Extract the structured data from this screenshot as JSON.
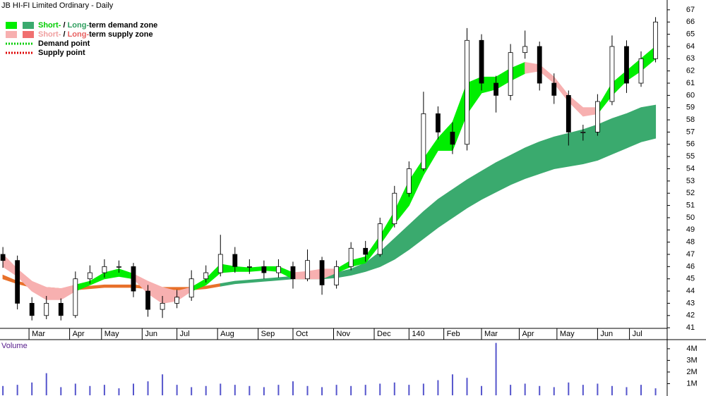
{
  "chart_data": [
    {
      "type": "candlestick",
      "title": "JB HI-FI Limited Ordinary - Daily",
      "legend": [
        {
          "swatches": [
            "#00ee00",
            "#3aaa6e"
          ],
          "style": "box",
          "parts": [
            {
              "text": "Short-",
              "color": "#00cc00"
            },
            {
              "text": " / ",
              "color": "#000000"
            },
            {
              "text": "Long-",
              "color": "#2e9e5e"
            },
            {
              "text": "term demand zone",
              "color": "#000000"
            }
          ]
        },
        {
          "swatches": [
            "#f7b0b0",
            "#f07070"
          ],
          "style": "box",
          "parts": [
            {
              "text": "Short-",
              "color": "#f0a0a0"
            },
            {
              "text": " / ",
              "color": "#000000"
            },
            {
              "text": "Long-",
              "color": "#e86060"
            },
            {
              "text": "term supply zone",
              "color": "#000000"
            }
          ]
        },
        {
          "swatches": [
            "#00cc00"
          ],
          "style": "dotted",
          "parts": [
            {
              "text": "Demand point",
              "color": "#000000"
            }
          ]
        },
        {
          "swatches": [
            "#dd0000"
          ],
          "style": "dotted",
          "parts": [
            {
              "text": "Supply point",
              "color": "#000000"
            }
          ]
        }
      ],
      "x": [
        0,
        5,
        10,
        15,
        20,
        25,
        30,
        35,
        40,
        45,
        50,
        55,
        60,
        65,
        70,
        75,
        80,
        85,
        90,
        95,
        100,
        105,
        110,
        115,
        120,
        125,
        130,
        135,
        140,
        145,
        150,
        155,
        160,
        165,
        170,
        175,
        180,
        185,
        190,
        195,
        200,
        205,
        210,
        215,
        220,
        225
      ],
      "open": [
        47,
        46.5,
        43,
        42,
        43,
        42,
        45,
        45.5,
        46,
        46,
        44,
        42.5,
        43,
        43.5,
        45,
        45.5,
        47,
        46,
        46,
        45.5,
        46,
        45,
        46.5,
        44.5,
        46,
        47.5,
        47,
        49.5,
        52,
        54,
        58.5,
        57,
        56,
        64.5,
        61,
        60,
        63.5,
        64,
        61,
        60,
        57,
        57,
        59.5,
        64,
        61,
        63
      ],
      "high": [
        47.6,
        46.9,
        43.5,
        43.6,
        43.4,
        45.6,
        46.1,
        46.6,
        46.5,
        46.3,
        44.5,
        43.6,
        44.1,
        45.7,
        46.1,
        48.6,
        47.6,
        46.6,
        46.5,
        46.6,
        46.4,
        47.4,
        46.8,
        46.5,
        48,
        48.1,
        50,
        52.6,
        54.6,
        60.3,
        59.1,
        57.8,
        65.5,
        65,
        61.6,
        64.2,
        65.3,
        64.4,
        61.8,
        60.4,
        57.6,
        60.1,
        64.9,
        64.5,
        63.6,
        66.4
      ],
      "low": [
        45.9,
        42.5,
        41.6,
        41.7,
        41.6,
        41.8,
        44.6,
        45.1,
        45.5,
        43.5,
        41.9,
        41.8,
        42.6,
        43.2,
        44.7,
        45.2,
        45.5,
        45.4,
        45,
        45.1,
        44.2,
        44.8,
        43.7,
        44.2,
        45.7,
        46.4,
        46.8,
        49.2,
        51.7,
        53.8,
        56.4,
        55.2,
        55.5,
        60.4,
        58.6,
        59.6,
        63,
        60.4,
        59.3,
        55.9,
        56.3,
        56.7,
        59.2,
        60.2,
        60.7,
        62.7
      ],
      "close": [
        46.5,
        43,
        42,
        43,
        42,
        45,
        45.5,
        46,
        46,
        44,
        42.5,
        43,
        43.5,
        45,
        45.5,
        47,
        46,
        46,
        45.5,
        46,
        45,
        46.5,
        44.5,
        46,
        47.5,
        47,
        49.5,
        52,
        54,
        58.5,
        57,
        56,
        64.5,
        61,
        60,
        63.5,
        64,
        61,
        60,
        57,
        57,
        59.5,
        64,
        61,
        63,
        66
      ],
      "up_color": "#ffffff",
      "down_color": "#000000",
      "edge_color": "#000000",
      "zones": [
        {
          "color": "#e8702a",
          "x": [
            0,
            5,
            10,
            15,
            20,
            25,
            30,
            35,
            40,
            45,
            50,
            55,
            60,
            65,
            70,
            75
          ],
          "upper": [
            45.3,
            44.8,
            44.5,
            44.3,
            44.2,
            44.3,
            44.4,
            44.5,
            44.5,
            44.5,
            44.4,
            44.3,
            44.3,
            44.3,
            44.4,
            44.6
          ],
          "lower": [
            45,
            44.6,
            44.3,
            44.1,
            44,
            44.1,
            44.2,
            44.3,
            44.3,
            44.3,
            44.2,
            44.2,
            44.1,
            44.1,
            44.2,
            44.4
          ]
        },
        {
          "color": "#3aaa6e",
          "x": [
            75,
            80,
            85,
            90,
            95,
            100,
            105,
            110,
            115,
            120,
            125,
            130,
            135,
            140,
            145,
            150,
            155,
            160,
            165,
            170,
            175,
            180,
            185,
            190,
            195,
            200,
            205,
            210,
            215,
            220,
            225
          ],
          "upper": [
            44.6,
            44.8,
            44.9,
            45,
            45.1,
            45.2,
            45.2,
            45.3,
            45.5,
            45.8,
            46.3,
            47.2,
            48.3,
            49.4,
            50.5,
            51.5,
            52.3,
            53.1,
            53.8,
            54.5,
            55.1,
            55.7,
            56.2,
            56.6,
            56.9,
            57.2,
            57.6,
            58.1,
            58.5,
            59,
            59.2
          ],
          "lower": [
            44.4,
            44.6,
            44.7,
            44.8,
            44.9,
            45,
            45,
            45,
            45.1,
            45.3,
            45.6,
            46,
            46.6,
            47.4,
            48.3,
            49.2,
            50,
            50.8,
            51.5,
            52.1,
            52.7,
            53.2,
            53.6,
            54,
            54.2,
            54.4,
            54.7,
            55.2,
            55.7,
            56.2,
            56.5
          ]
        },
        {
          "color": "#f7b0b0",
          "x": [
            0,
            5,
            10,
            15,
            20,
            25
          ],
          "upper": [
            47,
            45.8,
            44.8,
            44.3,
            44.2,
            44.5
          ],
          "lower": [
            46,
            45.2,
            44,
            43.3,
            43.3,
            44
          ]
        },
        {
          "color": "#00ee00",
          "x": [
            25,
            30,
            35,
            40,
            45
          ],
          "upper": [
            44.5,
            44.8,
            45.5,
            45.8,
            45.4
          ],
          "lower": [
            44,
            44.5,
            45,
            45.2,
            45
          ]
        },
        {
          "color": "#f7b0b0",
          "x": [
            45,
            50,
            55,
            60,
            65
          ],
          "upper": [
            45.4,
            44.8,
            44.3,
            44,
            44.3
          ],
          "lower": [
            45,
            43.8,
            43,
            43.2,
            44
          ]
        },
        {
          "color": "#00ee00",
          "x": [
            65,
            70,
            75,
            80,
            85,
            90,
            95,
            100
          ],
          "upper": [
            44.3,
            45,
            46.2,
            46,
            45.9,
            46,
            46,
            45.5
          ],
          "lower": [
            44,
            44.5,
            45.5,
            45.6,
            45.6,
            45.7,
            45.6,
            45
          ]
        },
        {
          "color": "#f7b0b0",
          "x": [
            100,
            105,
            110,
            115
          ],
          "upper": [
            45.5,
            45.6,
            45.8,
            45.8
          ],
          "lower": [
            45,
            45,
            45,
            45.5
          ]
        },
        {
          "color": "#00ee00",
          "x": [
            115,
            120,
            125,
            130,
            135,
            140,
            145,
            150,
            155,
            160,
            165,
            170,
            175,
            180
          ],
          "upper": [
            45.8,
            46.5,
            46.8,
            48.5,
            50.5,
            53,
            54.8,
            56.5,
            57.8,
            61,
            61.5,
            61.5,
            62.2,
            62.7
          ],
          "lower": [
            45.5,
            46,
            46.3,
            47.8,
            49.5,
            51,
            53.5,
            55.5,
            55.5,
            58.5,
            60.2,
            60.5,
            61.2,
            61.8
          ]
        },
        {
          "color": "#f7b0b0",
          "x": [
            180,
            185,
            190,
            195,
            200,
            205
          ],
          "upper": [
            62.7,
            62.5,
            61.5,
            60,
            59,
            59
          ],
          "lower": [
            61.8,
            62,
            61,
            59.5,
            58.3,
            58.5
          ]
        },
        {
          "color": "#00ee00",
          "x": [
            205,
            210,
            215,
            220,
            225
          ],
          "upper": [
            59,
            61,
            62,
            63,
            64
          ],
          "lower": [
            58.5,
            60,
            61.2,
            62,
            63
          ]
        }
      ],
      "xlim": [
        -1,
        229
      ],
      "xticks": [
        {
          "value": 9,
          "label": "Mar"
        },
        {
          "value": 23,
          "label": "Apr"
        },
        {
          "value": 34,
          "label": "May"
        },
        {
          "value": 48,
          "label": "Jun"
        },
        {
          "value": 60,
          "label": "Jul"
        },
        {
          "value": 74,
          "label": "Aug"
        },
        {
          "value": 88,
          "label": "Sep"
        },
        {
          "value": 100,
          "label": "Oct"
        },
        {
          "value": 114,
          "label": "Nov"
        },
        {
          "value": 128,
          "label": "Dec"
        },
        140,
        {
          "value": 152,
          "label": "Feb"
        },
        {
          "value": 165,
          "label": "Mar"
        },
        {
          "value": 178,
          "label": "Apr"
        },
        {
          "value": 191,
          "label": "May"
        },
        {
          "value": 205,
          "label": "Jun"
        },
        {
          "value": 216,
          "label": "Jul"
        }
      ],
      "ylim": [
        40.95,
        67.8
      ],
      "yticks": [
        41,
        42,
        43,
        44,
        45,
        46,
        47,
        48,
        49,
        50,
        51,
        52,
        53,
        54,
        55,
        56,
        57,
        58,
        59,
        60,
        61,
        62,
        63,
        64,
        65,
        66,
        67
      ]
    },
    {
      "type": "bar",
      "title": "Volume",
      "color": "#5555cc",
      "x": [
        0,
        5,
        10,
        15,
        20,
        25,
        30,
        35,
        40,
        45,
        50,
        55,
        60,
        65,
        70,
        75,
        80,
        85,
        90,
        95,
        100,
        105,
        110,
        115,
        120,
        125,
        130,
        135,
        140,
        145,
        150,
        155,
        160,
        165,
        170,
        175,
        180,
        185,
        190,
        195,
        200,
        205,
        210,
        215,
        220,
        225
      ],
      "values": [
        800000,
        900000,
        1100000,
        1900000,
        700000,
        1000000,
        800000,
        900000,
        600000,
        1000000,
        1200000,
        1800000,
        900000,
        700000,
        800000,
        1000000,
        900000,
        800000,
        700000,
        900000,
        1200000,
        800000,
        700000,
        900000,
        800000,
        900000,
        1000000,
        1100000,
        900000,
        1000000,
        1300000,
        1800000,
        1500000,
        800000,
        4500000,
        900000,
        1000000,
        800000,
        700000,
        1100000,
        900000,
        1000000,
        800000,
        700000,
        900000,
        600000
      ],
      "xlim": [
        -1,
        229
      ],
      "ylim": [
        0,
        4600000
      ],
      "yticks": [
        {
          "value": 1000000,
          "label": "1M"
        },
        {
          "value": 2000000,
          "label": "2M"
        },
        {
          "value": 3000000,
          "label": "3M"
        },
        {
          "value": 4000000,
          "label": "4M"
        }
      ]
    }
  ]
}
